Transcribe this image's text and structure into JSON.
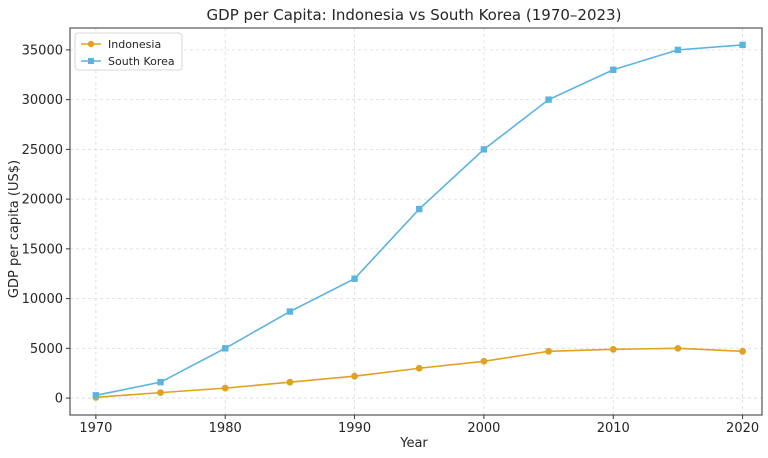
{
  "chart_data": {
    "type": "line",
    "title": "GDP per Capita: Indonesia vs South Korea (1970–2023)",
    "xlabel": "Year",
    "ylabel": "GDP per capita (US$)",
    "xlim": [
      1968,
      2021.5
    ],
    "ylim": [
      -1700,
      37200
    ],
    "xticks": [
      1970,
      1980,
      1990,
      2000,
      2010,
      2020
    ],
    "yticks": [
      0,
      5000,
      10000,
      15000,
      20000,
      25000,
      30000,
      35000
    ],
    "grid": true,
    "legend_position": "top-left",
    "x": [
      1970,
      1975,
      1980,
      1985,
      1990,
      1995,
      2000,
      2005,
      2010,
      2015,
      2020
    ],
    "series": [
      {
        "name": "Indonesia",
        "color": "#e0a21f",
        "marker": "circle",
        "values": [
          80,
          550,
          1000,
          1600,
          2200,
          3000,
          3700,
          4700,
          4900,
          5000,
          4700
        ]
      },
      {
        "name": "South Korea",
        "color": "#5ab4e0",
        "marker": "square",
        "values": [
          280,
          1600,
          5000,
          8700,
          12000,
          19000,
          25000,
          30000,
          33000,
          35000,
          35500
        ]
      }
    ]
  }
}
